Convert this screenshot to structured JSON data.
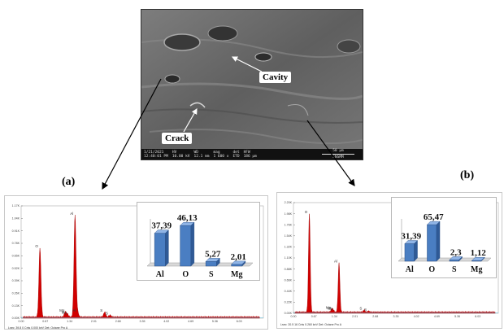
{
  "sem": {
    "labels": {
      "cavity": "Cavity",
      "crack": "Crack"
    },
    "info_bar": {
      "date": "1/21/2021",
      "time": "12:40:01 PM",
      "hv_label": "HV",
      "hv": "10.00 kV",
      "wd_label": "WD",
      "wd": "12.1 mm",
      "mag_label": "mag",
      "mag": "1 600 x",
      "det_label": "det",
      "det": "ETD",
      "hfw_label": "HFW",
      "hfw": "186 µm",
      "scale": "50 µm",
      "lab": "ENSMM"
    }
  },
  "panels": {
    "a": "(a)",
    "b": "(b)"
  },
  "chart_data": [
    {
      "type": "line",
      "panel": "(a)",
      "kind": "EDS spectrum",
      "x_ticks": [
        "0.00",
        "0.67",
        "1.34",
        "2.01",
        "2.68",
        "3.35",
        "4.02",
        "4.69",
        "5.36",
        "6.03"
      ],
      "y_ticks": [
        "0.00K",
        "0.13K",
        "0.26K",
        "0.39K",
        "0.52K",
        "0.65K",
        "0.78K",
        "0.91K",
        "1.04K",
        "1.17K"
      ],
      "xlim": [
        0,
        6.7
      ],
      "ylim": [
        0,
        1.17
      ],
      "peaks": [
        {
          "label": "O",
          "x": 0.52,
          "y": 0.72
        },
        {
          "label": "Mg",
          "x": 1.22,
          "y": 0.05
        },
        {
          "label": "Mg",
          "x": 1.28,
          "y": 0.03
        },
        {
          "label": "Al",
          "x": 1.49,
          "y": 1.06
        },
        {
          "label": "Al",
          "x": 1.56,
          "y": 0.05
        },
        {
          "label": "S",
          "x": 2.31,
          "y": 0.05
        },
        {
          "label": "S",
          "x": 2.46,
          "y": 0.02
        }
      ],
      "footer": "Lsec: 39.8    0 Cnts    0.000 keV    Det: Octane Pro A"
    },
    {
      "type": "line",
      "panel": "(b)",
      "kind": "EDS spectrum",
      "x_ticks": [
        "0.00",
        "0.67",
        "1.34",
        "2.01",
        "2.68",
        "3.35",
        "4.02",
        "4.69",
        "5.36",
        "6.03"
      ],
      "y_ticks": [
        "0.00K",
        "0.22K",
        "0.44K",
        "0.66K",
        "0.88K",
        "1.10K",
        "1.32K",
        "1.54K",
        "1.76K",
        "1.98K",
        "2.20K"
      ],
      "xlim": [
        0,
        6.7
      ],
      "ylim": [
        0,
        2.2
      ],
      "peaks": [
        {
          "label": "O",
          "x": 0.52,
          "y": 1.96
        },
        {
          "label": "Mg",
          "x": 1.25,
          "y": 0.06
        },
        {
          "label": "Mg",
          "x": 1.3,
          "y": 0.04
        },
        {
          "label": "Al",
          "x": 1.49,
          "y": 0.98
        },
        {
          "label": "S",
          "x": 2.31,
          "y": 0.04
        },
        {
          "label": "S",
          "x": 2.46,
          "y": 0.02
        }
      ],
      "footer": "Lsec: 20.5    16 Cnts    0.260 keV    Det: Octane Pro A"
    },
    {
      "type": "bar",
      "panel": "(a)",
      "kind": "inset",
      "categories": [
        "Al",
        "O",
        "S",
        "Mg"
      ],
      "values": [
        37.39,
        46.13,
        5.27,
        2.01
      ],
      "value_labels": [
        "37,39",
        "46,13",
        "5,27",
        "2,01"
      ],
      "ylim": [
        0,
        50
      ]
    },
    {
      "type": "bar",
      "panel": "(b)",
      "kind": "inset",
      "categories": [
        "Al",
        "O",
        "S",
        "Mg"
      ],
      "values": [
        31.39,
        65.47,
        2.3,
        1.12
      ],
      "value_labels": [
        "31,39",
        "65,47",
        "2,3",
        "1,12"
      ],
      "ylim": [
        0,
        70
      ]
    }
  ],
  "colors": {
    "bar": "#4a7ec2",
    "bar_top": "#8fb4e6",
    "bar_side": "#2f5a96",
    "spectrum_fill": "#d10000"
  }
}
